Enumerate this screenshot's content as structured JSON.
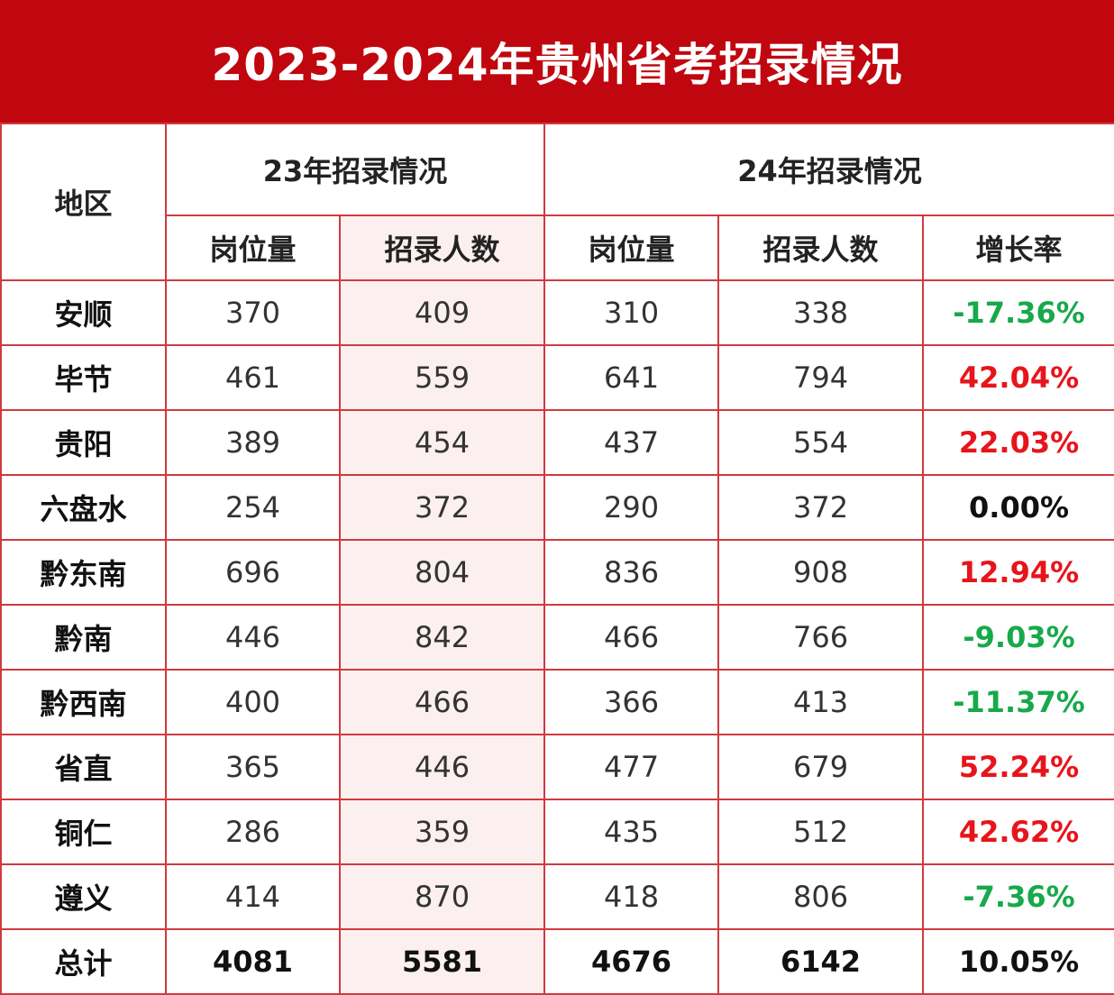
{
  "title": "2023-2024年贵州省考招录情况",
  "header": {
    "region": "地区",
    "group_2023": "23年招录情况",
    "group_2024": "24年招录情况",
    "positions": "岗位量",
    "hires": "招录人数",
    "growth": "增长率"
  },
  "rows": [
    {
      "region": "安顺",
      "pos23": "370",
      "hire23": "409",
      "pos24": "310",
      "hire24": "338",
      "growth": "-17.36%",
      "trend": "neg"
    },
    {
      "region": "毕节",
      "pos23": "461",
      "hire23": "559",
      "pos24": "641",
      "hire24": "794",
      "growth": "42.04%",
      "trend": "pos"
    },
    {
      "region": "贵阳",
      "pos23": "389",
      "hire23": "454",
      "pos24": "437",
      "hire24": "554",
      "growth": "22.03%",
      "trend": "pos"
    },
    {
      "region": "六盘水",
      "pos23": "254",
      "hire23": "372",
      "pos24": "290",
      "hire24": "372",
      "growth": "0.00%",
      "trend": "zero"
    },
    {
      "region": "黔东南",
      "pos23": "696",
      "hire23": "804",
      "pos24": "836",
      "hire24": "908",
      "growth": "12.94%",
      "trend": "pos"
    },
    {
      "region": "黔南",
      "pos23": "446",
      "hire23": "842",
      "pos24": "466",
      "hire24": "766",
      "growth": "-9.03%",
      "trend": "neg"
    },
    {
      "region": "黔西南",
      "pos23": "400",
      "hire23": "466",
      "pos24": "366",
      "hire24": "413",
      "growth": "-11.37%",
      "trend": "neg"
    },
    {
      "region": "省直",
      "pos23": "365",
      "hire23": "446",
      "pos24": "477",
      "hire24": "679",
      "growth": "52.24%",
      "trend": "pos"
    },
    {
      "region": "铜仁",
      "pos23": "286",
      "hire23": "359",
      "pos24": "435",
      "hire24": "512",
      "growth": "42.62%",
      "trend": "pos"
    },
    {
      "region": "遵义",
      "pos23": "414",
      "hire23": "870",
      "pos24": "418",
      "hire24": "806",
      "growth": "-7.36%",
      "trend": "neg"
    }
  ],
  "total": {
    "region": "总计",
    "pos23": "4081",
    "hire23": "5581",
    "pos24": "4676",
    "hire24": "6142",
    "growth": "10.05%",
    "trend": "pos"
  },
  "colors": {
    "banner": "#c0070f",
    "border": "#cf3a40",
    "positive": "#e8141b",
    "negative": "#17a94a"
  }
}
